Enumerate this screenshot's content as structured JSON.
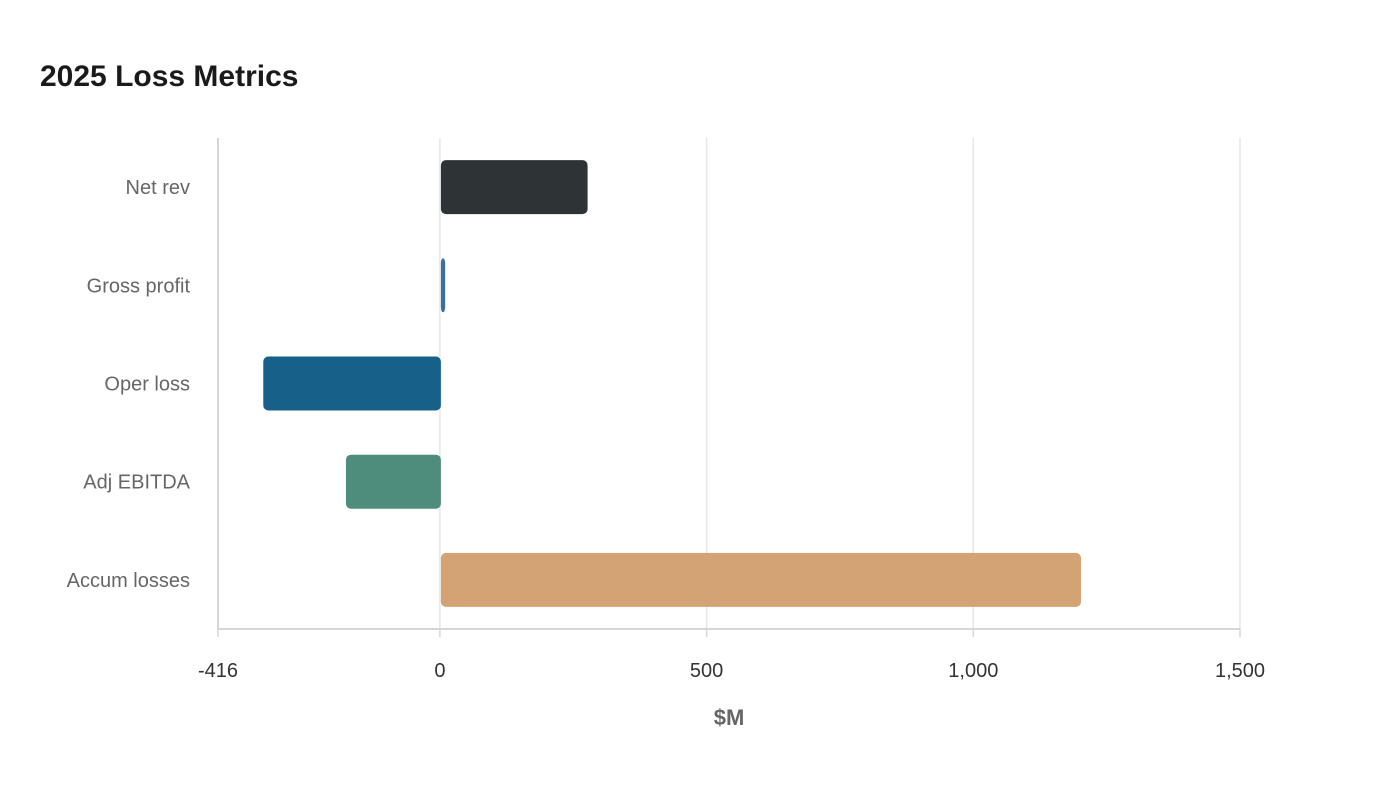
{
  "chart_data": {
    "type": "bar",
    "orientation": "horizontal",
    "title": "2025 Loss Metrics",
    "xlabel": "$M",
    "ylabel": "",
    "categories": [
      "Net rev",
      "Gross profit",
      "Oper loss",
      "Adj EBITDA",
      "Accum losses"
    ],
    "values": [
      275,
      8,
      -333,
      -178,
      1200
    ],
    "colors": [
      "#2e3436",
      "#3a6ea5",
      "#17608a",
      "#4e8d7c",
      "#d4a373"
    ],
    "xlim": [
      -416,
      1500
    ],
    "ticks": [
      -416,
      0,
      500,
      1000,
      1500
    ],
    "tick_labels": [
      "-416",
      "0",
      "500",
      "1,000",
      "1,500"
    ],
    "grid": true,
    "legend": "none"
  }
}
